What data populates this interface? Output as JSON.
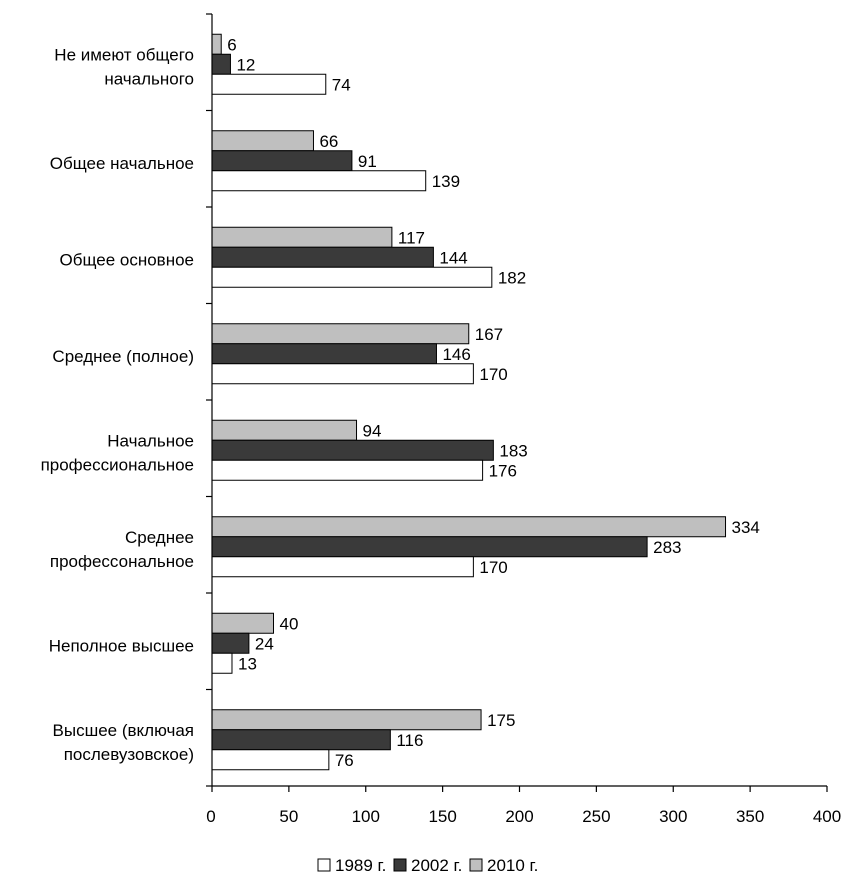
{
  "chart_data": {
    "type": "bar",
    "orientation": "horizontal",
    "categories": [
      [
        "Не имеют общего",
        "начального"
      ],
      [
        "Общее начальное"
      ],
      [
        "Общее основное"
      ],
      [
        "Среднее (полное)"
      ],
      [
        "Начальное",
        "профессиональное"
      ],
      [
        "Среднее",
        "профессональное"
      ],
      [
        "Неполное высшее"
      ],
      [
        "Высшее (включая",
        "послевузовское)"
      ]
    ],
    "series": [
      {
        "name": "1989 г.",
        "color": "#ffffff",
        "values": [
          74,
          139,
          182,
          170,
          176,
          170,
          13,
          76
        ]
      },
      {
        "name": "2002 г.",
        "color": "#3a3a3a",
        "values": [
          12,
          91,
          144,
          146,
          183,
          283,
          24,
          116
        ]
      },
      {
        "name": "2010 г.",
        "color": "#bfbfbf",
        "values": [
          6,
          66,
          117,
          167,
          94,
          334,
          40,
          175
        ]
      }
    ],
    "xlim": [
      0,
      400
    ],
    "xticks": [
      0,
      50,
      100,
      150,
      200,
      250,
      300,
      350,
      400
    ],
    "grid": false,
    "legend_position": "bottom",
    "data_labels": true
  }
}
